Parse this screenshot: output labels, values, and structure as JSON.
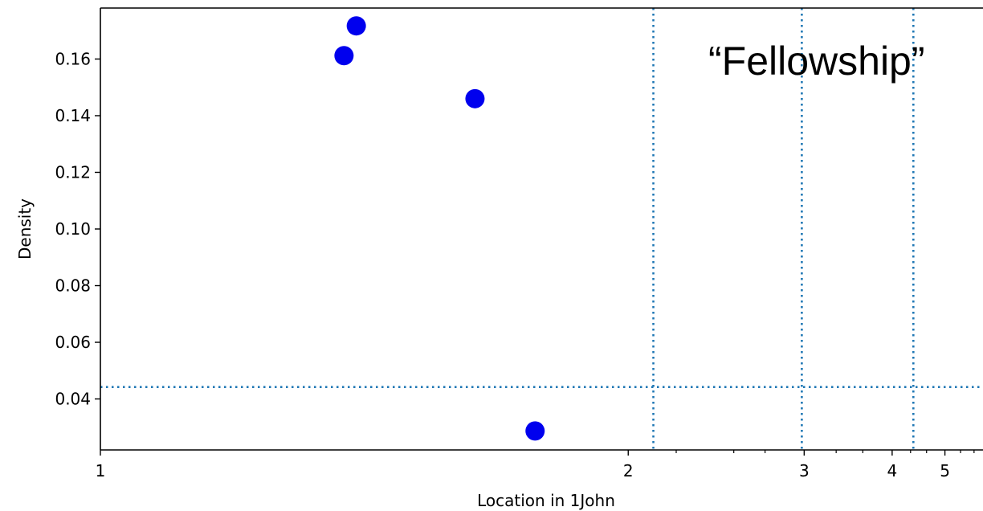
{
  "chart_data": {
    "type": "scatter",
    "title": "",
    "xlabel": "Location in 1John",
    "ylabel": "Density",
    "x_scale": "reciprocal",
    "xlim": [
      1,
      6.1
    ],
    "ylim": [
      0.022,
      0.178
    ],
    "x_ticks": [
      1,
      2,
      3,
      4,
      5
    ],
    "x_minor_ticks": [
      2.2,
      2.5,
      2.7,
      3.3,
      3.6,
      4.3,
      4.6,
      5.4,
      5.8
    ],
    "y_ticks": [
      0.04,
      0.06,
      0.08,
      0.1,
      0.12,
      0.14,
      0.16
    ],
    "y_tick_labels": [
      "0.04",
      "0.06",
      "0.08",
      "0.10",
      "0.12",
      "0.14",
      "0.16"
    ],
    "grid": false,
    "points": [
      {
        "x": 1.32,
        "y": 0.1717
      },
      {
        "x": 1.3,
        "y": 0.1612
      },
      {
        "x": 1.55,
        "y": 0.146
      },
      {
        "x": 1.7,
        "y": 0.0287
      }
    ],
    "point_color": "#0000ee",
    "reference_lines": {
      "color": "#1f77b4",
      "vertical_x": [
        2.1,
        2.98,
        4.35
      ],
      "horizontal_y": [
        0.0442
      ]
    },
    "annotation": "“Fellowship”"
  }
}
